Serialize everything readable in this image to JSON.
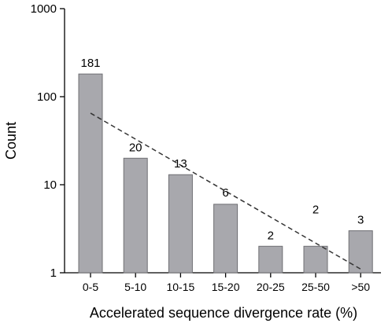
{
  "chart_data": {
    "type": "bar",
    "title": "",
    "xlabel": "Accelerated sequence divergence rate (%)",
    "ylabel": "Count",
    "yscale": "log",
    "ylim": [
      1,
      1000
    ],
    "yticks": [
      1,
      10,
      100,
      1000
    ],
    "ytick_labels": [
      "1",
      "10",
      "100",
      "1000"
    ],
    "categories": [
      "0-5",
      "5-10",
      "10-15",
      "15-20",
      "20-25",
      "25-50",
      ">50"
    ],
    "values": [
      181,
      20,
      13,
      6,
      2,
      2,
      3
    ],
    "data_labels": [
      "181",
      "20",
      "13",
      "6",
      "2",
      "2",
      "3"
    ],
    "trendline": {
      "style": "dashed",
      "from": {
        "category": "0-5",
        "y": 65
      },
      "to": {
        "category": ">50",
        "y": 1.1
      }
    },
    "grid": false,
    "legend": "none",
    "colors": {
      "bar_fill": "#a8a8ad",
      "bar_stroke": "#6f6f73",
      "trend": "#333333",
      "axis": "#000000"
    }
  }
}
